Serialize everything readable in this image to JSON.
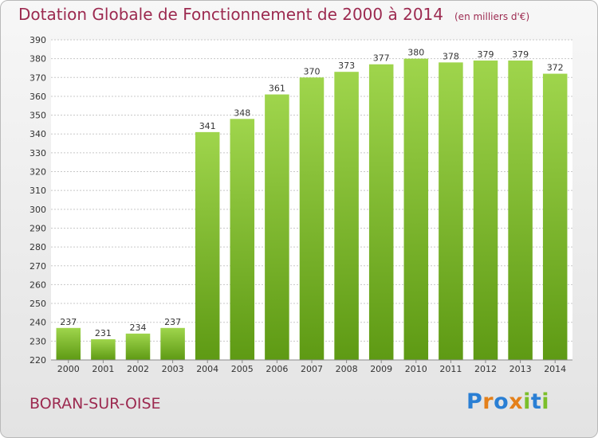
{
  "title": "Dotation Globale de Fonctionnement de 2000 à 2014",
  "unit_label": "(en milliers d'€)",
  "commune": "BORAN-SUR-OISE",
  "logo": {
    "letters": [
      "P",
      "r",
      "o",
      "x",
      "i",
      "t",
      "i"
    ],
    "colors": [
      "#2a7fd4",
      "#e4801a",
      "#2a7fd4",
      "#e4801a",
      "#7bbf2a",
      "#2a7fd4",
      "#7bbf2a"
    ]
  },
  "chart_data": {
    "type": "bar",
    "categories": [
      "2000",
      "2001",
      "2002",
      "2003",
      "2004",
      "2005",
      "2006",
      "2007",
      "2008",
      "2009",
      "2010",
      "2011",
      "2012",
      "2013",
      "2014"
    ],
    "values": [
      237,
      231,
      234,
      237,
      341,
      348,
      361,
      370,
      373,
      377,
      380,
      378,
      379,
      379,
      372
    ],
    "ylim": [
      220,
      390
    ],
    "yticks": [
      220,
      230,
      240,
      250,
      260,
      270,
      280,
      290,
      300,
      310,
      320,
      330,
      340,
      350,
      360,
      370,
      380,
      390
    ],
    "grid": true,
    "bar_color_top": "#9fd54c",
    "bar_color_bottom": "#5e9a14"
  }
}
